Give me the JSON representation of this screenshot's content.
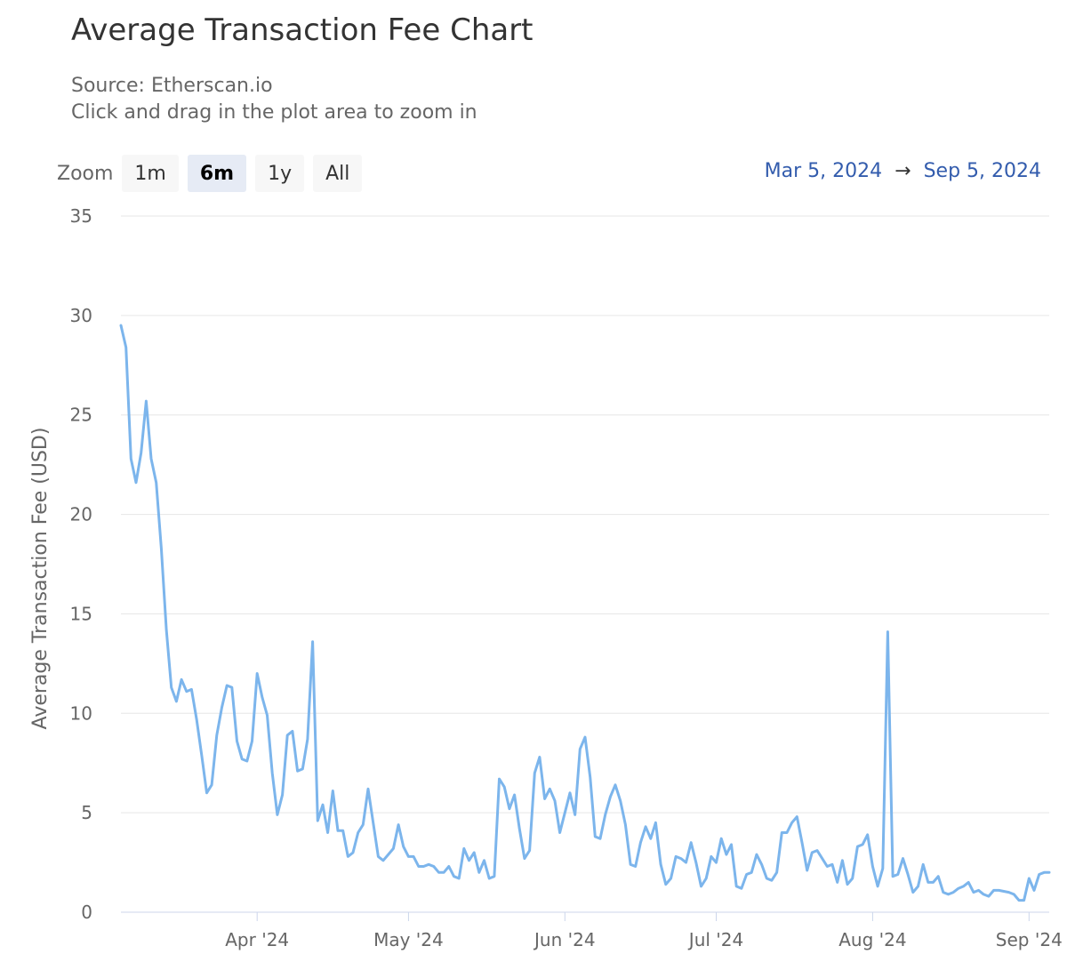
{
  "header": {
    "title": "Average Transaction Fee Chart",
    "subtitle_line1": "Source: Etherscan.io",
    "subtitle_line2": "Click and drag in the plot area to zoom in"
  },
  "zoom": {
    "label": "Zoom",
    "buttons": [
      {
        "label": "1m",
        "active": false
      },
      {
        "label": "6m",
        "active": true
      },
      {
        "label": "1y",
        "active": false
      },
      {
        "label": "All",
        "active": false
      }
    ]
  },
  "range": {
    "from": "Mar 5, 2024",
    "arrow": "→",
    "to": "Sep 5, 2024"
  },
  "colors": {
    "series": "#7cb5ec",
    "grid": "#e6e6e6",
    "axis_text": "#666666",
    "range_text": "#335cad"
  },
  "chart_data": {
    "type": "line",
    "ylabel": "Average Transaction Fee (USD)",
    "ylim": [
      0,
      35
    ],
    "yticks": [
      0,
      5,
      10,
      15,
      20,
      25,
      30,
      35
    ],
    "xlim": [
      "2024-03-05",
      "2024-09-05"
    ],
    "xticks": [
      {
        "date": "2024-04-01",
        "label": "Apr '24"
      },
      {
        "date": "2024-05-01",
        "label": "May '24"
      },
      {
        "date": "2024-06-01",
        "label": "Jun '24"
      },
      {
        "date": "2024-07-01",
        "label": "Jul '24"
      },
      {
        "date": "2024-08-01",
        "label": "Aug '24"
      },
      {
        "date": "2024-09-01",
        "label": "Sep '24"
      }
    ],
    "grid": true,
    "legend": "none",
    "series": [
      {
        "values": [
          [
            "2024-03-05",
            29.5
          ],
          [
            "2024-03-06",
            28.4
          ],
          [
            "2024-03-07",
            22.8
          ],
          [
            "2024-03-08",
            21.6
          ],
          [
            "2024-03-09",
            23.1
          ],
          [
            "2024-03-10",
            25.7
          ],
          [
            "2024-03-11",
            22.8
          ],
          [
            "2024-03-12",
            21.6
          ],
          [
            "2024-03-13",
            18.3
          ],
          [
            "2024-03-14",
            14.2
          ],
          [
            "2024-03-15",
            11.3
          ],
          [
            "2024-03-16",
            10.6
          ],
          [
            "2024-03-17",
            11.7
          ],
          [
            "2024-03-18",
            11.1
          ],
          [
            "2024-03-19",
            11.2
          ],
          [
            "2024-03-20",
            9.7
          ],
          [
            "2024-03-21",
            7.9
          ],
          [
            "2024-03-22",
            6.0
          ],
          [
            "2024-03-23",
            6.4
          ],
          [
            "2024-03-24",
            8.9
          ],
          [
            "2024-03-25",
            10.3
          ],
          [
            "2024-03-26",
            11.4
          ],
          [
            "2024-03-27",
            11.3
          ],
          [
            "2024-03-28",
            8.6
          ],
          [
            "2024-03-29",
            7.7
          ],
          [
            "2024-03-30",
            7.6
          ],
          [
            "2024-03-31",
            8.6
          ],
          [
            "2024-04-01",
            12.0
          ],
          [
            "2024-04-02",
            10.8
          ],
          [
            "2024-04-03",
            9.9
          ],
          [
            "2024-04-04",
            7.0
          ],
          [
            "2024-04-05",
            4.9
          ],
          [
            "2024-04-06",
            5.9
          ],
          [
            "2024-04-07",
            8.9
          ],
          [
            "2024-04-08",
            9.1
          ],
          [
            "2024-04-09",
            7.1
          ],
          [
            "2024-04-10",
            7.2
          ],
          [
            "2024-04-11",
            8.7
          ],
          [
            "2024-04-12",
            13.6
          ],
          [
            "2024-04-13",
            4.6
          ],
          [
            "2024-04-14",
            5.4
          ],
          [
            "2024-04-15",
            4.0
          ],
          [
            "2024-04-16",
            6.1
          ],
          [
            "2024-04-17",
            4.1
          ],
          [
            "2024-04-18",
            4.1
          ],
          [
            "2024-04-19",
            2.8
          ],
          [
            "2024-04-20",
            3.0
          ],
          [
            "2024-04-21",
            4.0
          ],
          [
            "2024-04-22",
            4.4
          ],
          [
            "2024-04-23",
            6.2
          ],
          [
            "2024-04-24",
            4.5
          ],
          [
            "2024-04-25",
            2.8
          ],
          [
            "2024-04-26",
            2.6
          ],
          [
            "2024-04-27",
            2.9
          ],
          [
            "2024-04-28",
            3.2
          ],
          [
            "2024-04-29",
            4.4
          ],
          [
            "2024-04-30",
            3.3
          ],
          [
            "2024-05-01",
            2.8
          ],
          [
            "2024-05-02",
            2.8
          ],
          [
            "2024-05-03",
            2.3
          ],
          [
            "2024-05-04",
            2.3
          ],
          [
            "2024-05-05",
            2.4
          ],
          [
            "2024-05-06",
            2.3
          ],
          [
            "2024-05-07",
            2.0
          ],
          [
            "2024-05-08",
            2.0
          ],
          [
            "2024-05-09",
            2.3
          ],
          [
            "2024-05-10",
            1.8
          ],
          [
            "2024-05-11",
            1.7
          ],
          [
            "2024-05-12",
            3.2
          ],
          [
            "2024-05-13",
            2.6
          ],
          [
            "2024-05-14",
            3.0
          ],
          [
            "2024-05-15",
            2.0
          ],
          [
            "2024-05-16",
            2.6
          ],
          [
            "2024-05-17",
            1.7
          ],
          [
            "2024-05-18",
            1.8
          ],
          [
            "2024-05-19",
            6.7
          ],
          [
            "2024-05-20",
            6.3
          ],
          [
            "2024-05-21",
            5.2
          ],
          [
            "2024-05-22",
            5.9
          ],
          [
            "2024-05-23",
            4.2
          ],
          [
            "2024-05-24",
            2.7
          ],
          [
            "2024-05-25",
            3.1
          ],
          [
            "2024-05-26",
            7.0
          ],
          [
            "2024-05-27",
            7.8
          ],
          [
            "2024-05-28",
            5.7
          ],
          [
            "2024-05-29",
            6.2
          ],
          [
            "2024-05-30",
            5.6
          ],
          [
            "2024-05-31",
            4.0
          ],
          [
            "2024-06-01",
            5.0
          ],
          [
            "2024-06-02",
            6.0
          ],
          [
            "2024-06-03",
            4.9
          ],
          [
            "2024-06-04",
            8.2
          ],
          [
            "2024-06-05",
            8.8
          ],
          [
            "2024-06-06",
            6.8
          ],
          [
            "2024-06-07",
            3.8
          ],
          [
            "2024-06-08",
            3.7
          ],
          [
            "2024-06-09",
            4.9
          ],
          [
            "2024-06-10",
            5.8
          ],
          [
            "2024-06-11",
            6.4
          ],
          [
            "2024-06-12",
            5.6
          ],
          [
            "2024-06-13",
            4.4
          ],
          [
            "2024-06-14",
            2.4
          ],
          [
            "2024-06-15",
            2.3
          ],
          [
            "2024-06-16",
            3.5
          ],
          [
            "2024-06-17",
            4.3
          ],
          [
            "2024-06-18",
            3.7
          ],
          [
            "2024-06-19",
            4.5
          ],
          [
            "2024-06-20",
            2.4
          ],
          [
            "2024-06-21",
            1.4
          ],
          [
            "2024-06-22",
            1.7
          ],
          [
            "2024-06-23",
            2.8
          ],
          [
            "2024-06-24",
            2.7
          ],
          [
            "2024-06-25",
            2.5
          ],
          [
            "2024-06-26",
            3.5
          ],
          [
            "2024-06-27",
            2.5
          ],
          [
            "2024-06-28",
            1.3
          ],
          [
            "2024-06-29",
            1.7
          ],
          [
            "2024-06-30",
            2.8
          ],
          [
            "2024-07-01",
            2.5
          ],
          [
            "2024-07-02",
            3.7
          ],
          [
            "2024-07-03",
            2.9
          ],
          [
            "2024-07-04",
            3.4
          ],
          [
            "2024-07-05",
            1.3
          ],
          [
            "2024-07-06",
            1.2
          ],
          [
            "2024-07-07",
            1.9
          ],
          [
            "2024-07-08",
            2.0
          ],
          [
            "2024-07-09",
            2.9
          ],
          [
            "2024-07-10",
            2.4
          ],
          [
            "2024-07-11",
            1.7
          ],
          [
            "2024-07-12",
            1.6
          ],
          [
            "2024-07-13",
            2.0
          ],
          [
            "2024-07-14",
            4.0
          ],
          [
            "2024-07-15",
            4.0
          ],
          [
            "2024-07-16",
            4.5
          ],
          [
            "2024-07-17",
            4.8
          ],
          [
            "2024-07-18",
            3.5
          ],
          [
            "2024-07-19",
            2.1
          ],
          [
            "2024-07-20",
            3.0
          ],
          [
            "2024-07-21",
            3.1
          ],
          [
            "2024-07-22",
            2.7
          ],
          [
            "2024-07-23",
            2.3
          ],
          [
            "2024-07-24",
            2.4
          ],
          [
            "2024-07-25",
            1.5
          ],
          [
            "2024-07-26",
            2.6
          ],
          [
            "2024-07-27",
            1.4
          ],
          [
            "2024-07-28",
            1.7
          ],
          [
            "2024-07-29",
            3.3
          ],
          [
            "2024-07-30",
            3.4
          ],
          [
            "2024-07-31",
            3.9
          ],
          [
            "2024-08-01",
            2.3
          ],
          [
            "2024-08-02",
            1.3
          ],
          [
            "2024-08-03",
            2.2
          ],
          [
            "2024-08-04",
            14.1
          ],
          [
            "2024-08-05",
            1.8
          ],
          [
            "2024-08-06",
            1.9
          ],
          [
            "2024-08-07",
            2.7
          ],
          [
            "2024-08-08",
            1.9
          ],
          [
            "2024-08-09",
            1.0
          ],
          [
            "2024-08-10",
            1.3
          ],
          [
            "2024-08-11",
            2.4
          ],
          [
            "2024-08-12",
            1.5
          ],
          [
            "2024-08-13",
            1.5
          ],
          [
            "2024-08-14",
            1.8
          ],
          [
            "2024-08-15",
            1.0
          ],
          [
            "2024-08-16",
            0.9
          ],
          [
            "2024-08-17",
            1.0
          ],
          [
            "2024-08-18",
            1.2
          ],
          [
            "2024-08-19",
            1.3
          ],
          [
            "2024-08-20",
            1.5
          ],
          [
            "2024-08-21",
            1.0
          ],
          [
            "2024-08-22",
            1.1
          ],
          [
            "2024-08-23",
            0.9
          ],
          [
            "2024-08-24",
            0.8
          ],
          [
            "2024-08-25",
            1.1
          ],
          [
            "2024-08-26",
            1.1
          ],
          [
            "2024-08-27",
            1.05
          ],
          [
            "2024-08-28",
            1.0
          ],
          [
            "2024-08-29",
            0.9
          ],
          [
            "2024-08-30",
            0.6
          ],
          [
            "2024-08-31",
            0.6
          ],
          [
            "2024-09-01",
            1.7
          ],
          [
            "2024-09-02",
            1.1
          ],
          [
            "2024-09-03",
            1.9
          ],
          [
            "2024-09-04",
            2.0
          ],
          [
            "2024-09-05",
            2.0
          ]
        ]
      }
    ]
  }
}
